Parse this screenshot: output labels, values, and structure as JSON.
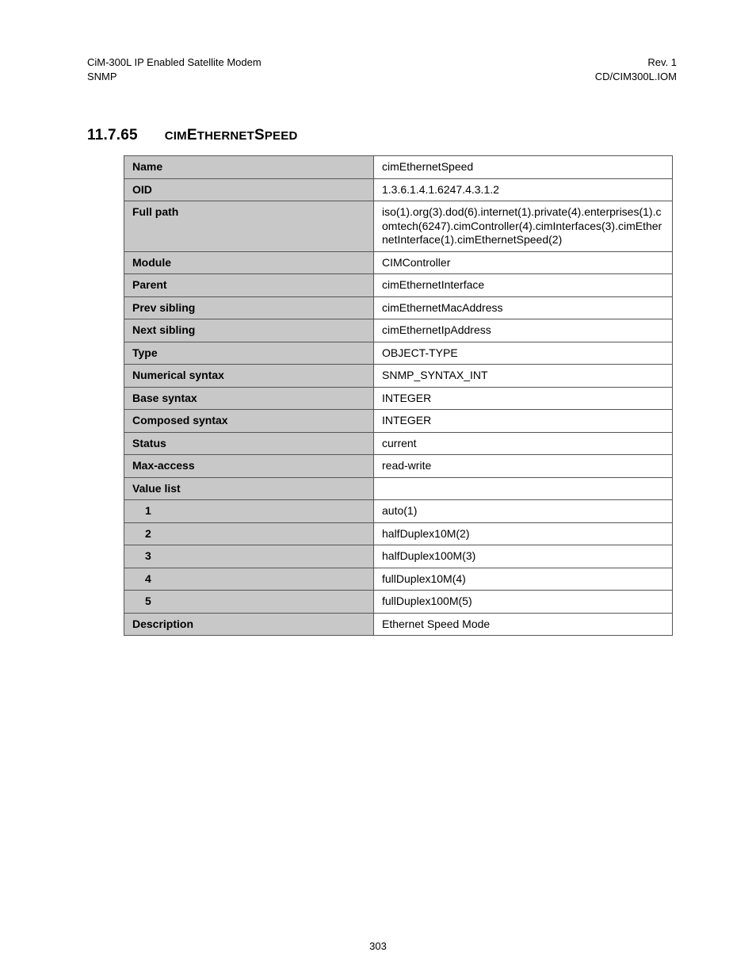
{
  "header": {
    "left_line1": "CiM-300L IP Enabled Satellite Modem",
    "left_line2": "SNMP",
    "right_line1": "Rev. 1",
    "right_line2": "CD/CIM300L.IOM"
  },
  "section": {
    "number": "11.7.65",
    "title_parts": [
      "CIM",
      "E",
      "THERNET",
      "S",
      "PEED"
    ]
  },
  "table": {
    "label_bg": "#c8c8c8",
    "border_color": "#555555",
    "rows": [
      {
        "label": "Name",
        "value": "cimEthernetSpeed"
      },
      {
        "label": "OID",
        "value": "1.3.6.1.4.1.6247.4.3.1.2"
      },
      {
        "label": "Full path",
        "value": "iso(1).org(3).dod(6).internet(1).private(4).enterprises(1).comtech(6247).cimController(4).cimInterfaces(3).cimEthernetInterface(1).cimEthernetSpeed(2)"
      },
      {
        "label": "Module",
        "value": "CIMController"
      },
      {
        "label": "Parent",
        "value": "cimEthernetInterface"
      },
      {
        "label": "Prev sibling",
        "value": "cimEthernetMacAddress"
      },
      {
        "label": "Next sibling",
        "value": "cimEthernetIpAddress"
      },
      {
        "label": "Type",
        "value": "OBJECT-TYPE"
      },
      {
        "label": "Numerical syntax",
        "value": "SNMP_SYNTAX_INT"
      },
      {
        "label": "Base syntax",
        "value": "INTEGER"
      },
      {
        "label": "Composed syntax",
        "value": "INTEGER"
      },
      {
        "label": "Status",
        "value": "current"
      },
      {
        "label": "Max-access",
        "value": "read-write"
      },
      {
        "label": "Value list",
        "value": ""
      },
      {
        "label": "1",
        "indent": true,
        "value": "auto(1)"
      },
      {
        "label": "2",
        "indent": true,
        "value": "halfDuplex10M(2)"
      },
      {
        "label": "3",
        "indent": true,
        "value": "halfDuplex100M(3)"
      },
      {
        "label": "4",
        "indent": true,
        "value": "fullDuplex10M(4)"
      },
      {
        "label": "5",
        "indent": true,
        "value": "fullDuplex100M(5)"
      },
      {
        "label": "Description",
        "value": "Ethernet Speed Mode"
      }
    ]
  },
  "footer": {
    "page_number": "303"
  }
}
